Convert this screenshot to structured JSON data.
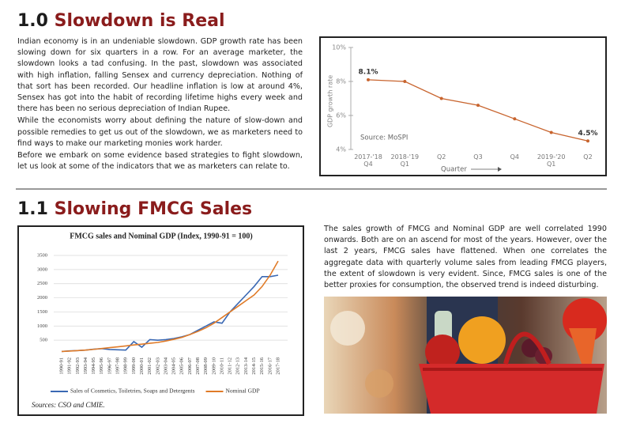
{
  "sections": [
    {
      "number": "1.0",
      "title": "Slowdown is Real",
      "paragraphs": [
        "Indian economy is in an undeniable slowdown. GDP growth rate has been slowing down for six quarters in a row.  For an average marketer, the slowdown looks a tad confusing. In the past, slowdown was associated with high inflation, falling Sensex and currency depreciation. Nothing of that sort has been recorded. Our headline inflation is low at around 4%, Sensex has got into the habit of recording lifetime highs every week and there has been no serious depreciation of Indian Rupee.",
        "While the economists worry about defining the nature of slow-down and possible remedies to get us out of the slowdown, we as marketers need to find ways to make our marketing monies work harder.",
        "Before we embark on some evidence based strategies to fight slowdown, let us look at some of the indicators that we as marketers can relate to."
      ]
    },
    {
      "number": "1.1",
      "title": "Slowing FMCG Sales",
      "paragraphs": [
        "The sales growth of FMCG and Nominal GDP are well correlated 1990 onwards. Both are on an ascend for most of the years. However, over the last 2 years, FMCG sales have flattened. When one correlates the aggregate data with quarterly volume sales from leading FMCG players, the extent of slowdown is very evident. Since, FMCG sales is one of the better proxies for consumption, the observed trend is indeed disturbing."
      ]
    }
  ],
  "chart_data": [
    {
      "type": "line",
      "y_label": "GDP growth rate",
      "x_label": "Quarter",
      "source": "Source: MoSPI",
      "categories": [
        "2017-'18 Q4",
        "2018-'19 Q1",
        "Q2",
        "Q3",
        "Q4",
        "2019-'20 Q1",
        "Q2"
      ],
      "values": [
        8.1,
        8.0,
        7.0,
        6.6,
        5.8,
        5.0,
        4.5
      ],
      "value_labels": [
        "8.1%",
        null,
        null,
        null,
        null,
        null,
        "4.5%"
      ],
      "color": "#c8642e",
      "ylim": [
        4,
        10
      ],
      "yticks": [
        {
          "value": 4,
          "label": "4%"
        },
        {
          "value": 6,
          "label": "6%"
        },
        {
          "value": 8,
          "label": "8%"
        },
        {
          "value": 10,
          "label": "10%"
        }
      ],
      "grid": false
    },
    {
      "type": "line",
      "title": "FMCG sales and Nominal GDP (Index, 1990-91 = 100)",
      "source": "Sources: CSO and CMIE.",
      "categories": [
        "1990-91",
        "1991-92",
        "1992-93",
        "1993-94",
        "1994-95",
        "1995-96",
        "1996-97",
        "1997-98",
        "1998-99",
        "1999-00",
        "2000-01",
        "2001-02",
        "2002-03",
        "2003-04",
        "2004-05",
        "2005-06",
        "2006-07",
        "2007-08",
        "2008-09",
        "2009-10",
        "2010-11",
        "2011-12",
        "2012-13",
        "2013-14",
        "2014-15",
        "2015-16",
        "2016-17",
        "2017-18"
      ],
      "series": [
        {
          "name": "Sales of Cosmetics, Toiletries, Soaps and Detergents",
          "color": "#3a68b3",
          "values": [
            100,
            120,
            130,
            150,
            180,
            200,
            170,
            160,
            150,
            450,
            250,
            520,
            500,
            520,
            560,
            620,
            700,
            850,
            1000,
            1150,
            1100,
            1500,
            1800,
            2100,
            2400,
            2750,
            2750,
            2800
          ]
        },
        {
          "name": "Nominal GDP",
          "color": "#e07b28",
          "values": [
            100,
            115,
            130,
            150,
            175,
            205,
            235,
            265,
            295,
            330,
            360,
            390,
            420,
            470,
            530,
            600,
            700,
            810,
            940,
            1100,
            1300,
            1500,
            1700,
            1900,
            2100,
            2400,
            2800,
            3300
          ]
        }
      ],
      "ylim": [
        0,
        3500
      ],
      "yticks": [
        500,
        1000,
        1500,
        2000,
        2500,
        3000,
        3500
      ],
      "grid": true,
      "legend": "bottom"
    }
  ]
}
